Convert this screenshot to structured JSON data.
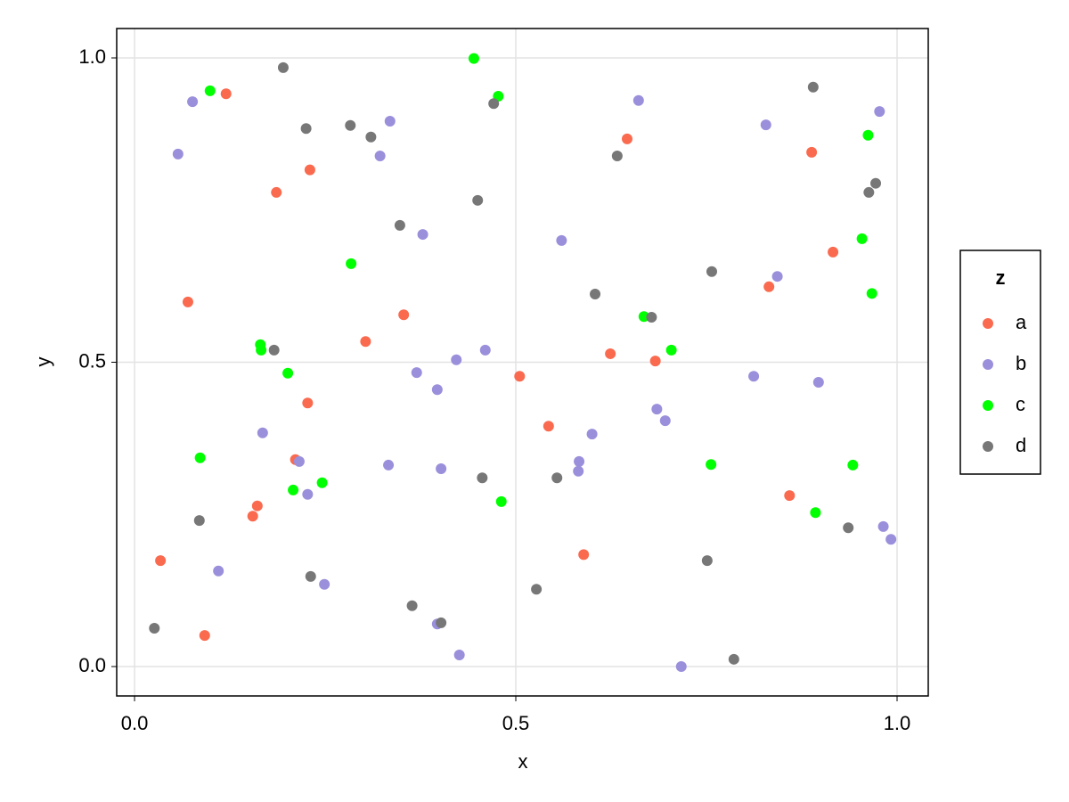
{
  "chart_data": {
    "type": "scatter",
    "x_label": "x",
    "y_label": "y",
    "legend_title": "z",
    "legend_position": "right",
    "grid": true,
    "xlim": [
      -0.0234,
      1.0409
    ],
    "ylim": [
      -0.0483,
      1.0483
    ],
    "xticks": [
      {
        "value": 0,
        "label": "0.0"
      },
      {
        "value": 0.5,
        "label": "0.5"
      },
      {
        "value": 1,
        "label": "1.0"
      }
    ],
    "yticks": [
      {
        "value": 0,
        "label": "0.0"
      },
      {
        "value": 0.5,
        "label": "0.5"
      },
      {
        "value": 1,
        "label": "1.0"
      }
    ],
    "series": [
      {
        "name": "a",
        "color": "#fa6a4f",
        "x": [
          0.12,
          0.23,
          0.186,
          0.07,
          0.353,
          0.303,
          0.227,
          0.211,
          0.161,
          0.155,
          0.034,
          0.092,
          0.505,
          0.543,
          0.589,
          0.624,
          0.646,
          0.683,
          0.832,
          0.859,
          0.888,
          0.916
        ],
        "values": [
          0.941,
          0.816,
          0.779,
          0.599,
          0.578,
          0.534,
          0.433,
          0.34,
          0.264,
          0.247,
          0.174,
          0.051,
          0.477,
          0.395,
          0.184,
          0.514,
          0.867,
          0.502,
          0.624,
          0.281,
          0.845,
          0.681
        ]
      },
      {
        "name": "b",
        "color": "#9a8fdb",
        "x": [
          0.076,
          0.057,
          0.335,
          0.322,
          0.378,
          0.37,
          0.422,
          0.46,
          0.397,
          0.168,
          0.216,
          0.333,
          0.402,
          0.227,
          0.11,
          0.249,
          0.397,
          0.426,
          0.56,
          0.6,
          0.583,
          0.582,
          0.661,
          0.685,
          0.696,
          0.717,
          0.812,
          0.828,
          0.843,
          0.897,
          0.977,
          0.982,
          0.992
        ],
        "values": [
          0.928,
          0.842,
          0.896,
          0.839,
          0.71,
          0.483,
          0.504,
          0.52,
          0.455,
          0.384,
          0.337,
          0.331,
          0.325,
          0.283,
          0.157,
          0.135,
          0.07,
          0.019,
          0.7,
          0.382,
          0.337,
          0.321,
          0.93,
          0.423,
          0.404,
          0.0,
          0.477,
          0.89,
          0.641,
          0.467,
          0.912,
          0.23,
          0.209
        ]
      },
      {
        "name": "c",
        "color": "#00ff00",
        "x": [
          0.099,
          0.445,
          0.477,
          0.284,
          0.165,
          0.166,
          0.201,
          0.086,
          0.208,
          0.246,
          0.481,
          0.668,
          0.704,
          0.756,
          0.893,
          0.942,
          0.962,
          0.954,
          0.967
        ],
        "values": [
          0.946,
          0.999,
          0.937,
          0.662,
          0.529,
          0.52,
          0.482,
          0.343,
          0.29,
          0.302,
          0.271,
          0.575,
          0.52,
          0.332,
          0.253,
          0.331,
          0.873,
          0.703,
          0.613
        ]
      },
      {
        "name": "d",
        "color": "#777777",
        "x": [
          0.195,
          0.225,
          0.283,
          0.31,
          0.348,
          0.45,
          0.471,
          0.183,
          0.085,
          0.231,
          0.364,
          0.402,
          0.026,
          0.456,
          0.527,
          0.554,
          0.604,
          0.633,
          0.678,
          0.751,
          0.757,
          0.786,
          0.89,
          0.936,
          0.963,
          0.972
        ],
        "values": [
          0.984,
          0.884,
          0.889,
          0.87,
          0.725,
          0.766,
          0.925,
          0.52,
          0.24,
          0.148,
          0.1,
          0.072,
          0.063,
          0.31,
          0.127,
          0.31,
          0.612,
          0.839,
          0.574,
          0.174,
          0.649,
          0.012,
          0.952,
          0.228,
          0.779,
          0.794
        ]
      }
    ]
  }
}
